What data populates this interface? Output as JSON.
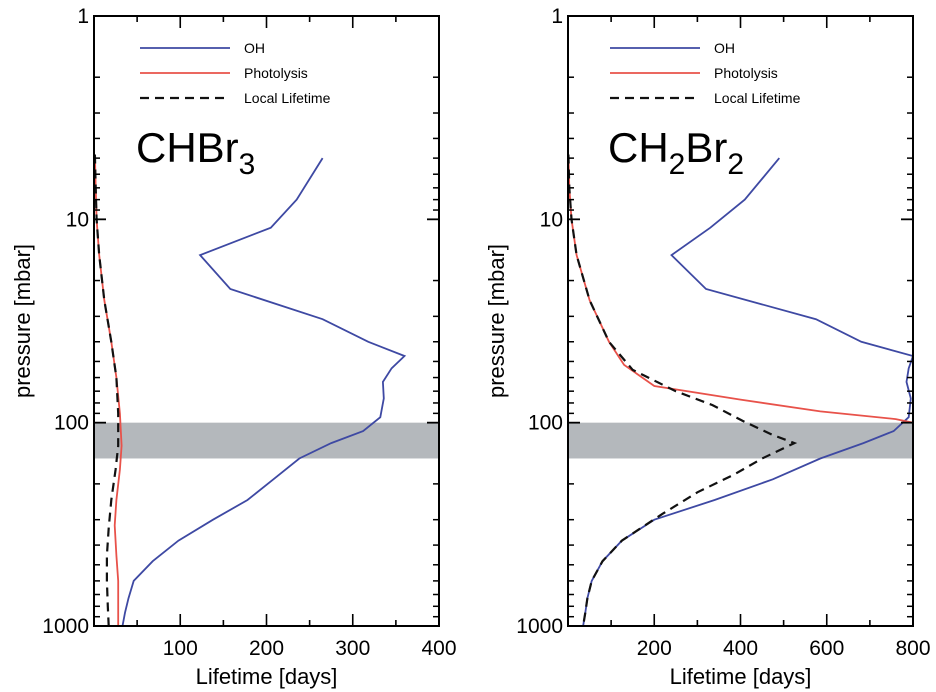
{
  "chart_data": [
    {
      "type": "line",
      "species": {
        "main": "CHBr",
        "sub": "3",
        "tail": ""
      },
      "xlabel": "Lifetime [days]",
      "ylabel": "pressure [mbar]",
      "xlim": [
        0,
        400
      ],
      "xticks": [
        100,
        200,
        300,
        400
      ],
      "ylim": [
        1000,
        1
      ],
      "yscale": "log",
      "yticks": [
        1,
        10,
        100,
        1000
      ],
      "shaded_band": {
        "p_low": 100,
        "p_high": 150
      },
      "legend": {
        "position": "top-center",
        "entries": [
          "OH",
          "Photolysis",
          "Local Lifetime"
        ]
      },
      "series": [
        {
          "name": "OH",
          "color": "#3e49a3",
          "style": "solid",
          "points": [
            [
              265,
              5
            ],
            [
              235,
              8
            ],
            [
              205,
              11
            ],
            [
              123,
              15
            ],
            [
              158,
              22
            ],
            [
              265,
              31
            ],
            [
              318,
              40
            ],
            [
              360,
              47
            ],
            [
              345,
              54
            ],
            [
              335,
              63
            ],
            [
              336,
              76
            ],
            [
              332,
              94
            ],
            [
              312,
              110
            ],
            [
              275,
              126
            ],
            [
              238,
              150
            ],
            [
              208,
              190
            ],
            [
              178,
              240
            ],
            [
              138,
              300
            ],
            [
              98,
              380
            ],
            [
              68,
              480
            ],
            [
              46,
              600
            ],
            [
              40,
              730
            ],
            [
              36,
              860
            ],
            [
              33,
              1000
            ]
          ]
        },
        {
          "name": "Photolysis",
          "color": "#e8524a",
          "style": "solid",
          "points": [
            [
              1,
              4.8
            ],
            [
              2,
              7
            ],
            [
              3,
              10
            ],
            [
              6,
              15
            ],
            [
              12,
              25
            ],
            [
              20,
              40
            ],
            [
              26,
              60
            ],
            [
              30,
              90
            ],
            [
              32,
              130
            ],
            [
              30,
              170
            ],
            [
              26,
              240
            ],
            [
              24,
              320
            ],
            [
              26,
              450
            ],
            [
              28,
              600
            ],
            [
              28,
              800
            ],
            [
              28,
              1000
            ]
          ]
        },
        {
          "name": "Local Lifetime",
          "color": "#111111",
          "style": "dashed",
          "points": [
            [
              1,
              4.8
            ],
            [
              2,
              7
            ],
            [
              3,
              10
            ],
            [
              6,
              15
            ],
            [
              12,
              25
            ],
            [
              20,
              40
            ],
            [
              26,
              60
            ],
            [
              28,
              90
            ],
            [
              28,
              130
            ],
            [
              25,
              170
            ],
            [
              20,
              240
            ],
            [
              17,
              330
            ],
            [
              15,
              450
            ],
            [
              15,
              600
            ],
            [
              16,
              800
            ],
            [
              17,
              1000
            ]
          ]
        }
      ]
    },
    {
      "type": "line",
      "species": {
        "main": "CH",
        "sub": "2",
        "tail": "Br",
        "sub2": "2"
      },
      "xlabel": "Lifetime [days]",
      "ylabel": "pressure [mbar]",
      "xlim": [
        0,
        800
      ],
      "xticks": [
        200,
        400,
        600,
        800
      ],
      "ylim": [
        1000,
        1
      ],
      "yscale": "log",
      "yticks": [
        1,
        10,
        100,
        1000
      ],
      "shaded_band": {
        "p_low": 100,
        "p_high": 150
      },
      "legend": {
        "position": "top-center",
        "entries": [
          "OH",
          "Photolysis",
          "Local Lifetime"
        ]
      },
      "series": [
        {
          "name": "OH",
          "color": "#3e49a3",
          "style": "solid",
          "points": [
            [
              490,
              5
            ],
            [
              410,
              8
            ],
            [
              330,
              11
            ],
            [
              240,
              15
            ],
            [
              320,
              22
            ],
            [
              575,
              31
            ],
            [
              680,
              40
            ],
            [
              800,
              47
            ],
            [
              790,
              54
            ],
            [
              785,
              63
            ],
            [
              795,
              76
            ],
            [
              790,
              94
            ],
            [
              755,
              110
            ],
            [
              685,
              126
            ],
            [
              585,
              150
            ],
            [
              475,
              190
            ],
            [
              340,
              240
            ],
            [
              200,
              300
            ],
            [
              125,
              380
            ],
            [
              80,
              480
            ],
            [
              55,
              600
            ],
            [
              45,
              730
            ],
            [
              40,
              860
            ],
            [
              35,
              1000
            ]
          ]
        },
        {
          "name": "Photolysis",
          "color": "#e8524a",
          "style": "solid",
          "points": [
            [
              1,
              4.8
            ],
            [
              3,
              7
            ],
            [
              8,
              10
            ],
            [
              20,
              15
            ],
            [
              50,
              25
            ],
            [
              95,
              40
            ],
            [
              130,
              52
            ],
            [
              200,
              66
            ],
            [
              400,
              77
            ],
            [
              585,
              88
            ],
            [
              760,
              96
            ],
            [
              800,
              100
            ]
          ]
        },
        {
          "name": "Local Lifetime",
          "color": "#111111",
          "style": "dashed",
          "points": [
            [
              1,
              4.8
            ],
            [
              3,
              7
            ],
            [
              8,
              10
            ],
            [
              20,
              15
            ],
            [
              50,
              25
            ],
            [
              95,
              40
            ],
            [
              150,
              55
            ],
            [
              250,
              70
            ],
            [
              335,
              82
            ],
            [
              405,
              98
            ],
            [
              475,
              115
            ],
            [
              525,
              126
            ],
            [
              450,
              150
            ],
            [
              385,
              180
            ],
            [
              300,
              220
            ],
            [
              220,
              280
            ],
            [
              125,
              380
            ],
            [
              80,
              480
            ],
            [
              55,
              600
            ],
            [
              45,
              730
            ],
            [
              40,
              860
            ],
            [
              35,
              1000
            ]
          ]
        }
      ]
    }
  ]
}
